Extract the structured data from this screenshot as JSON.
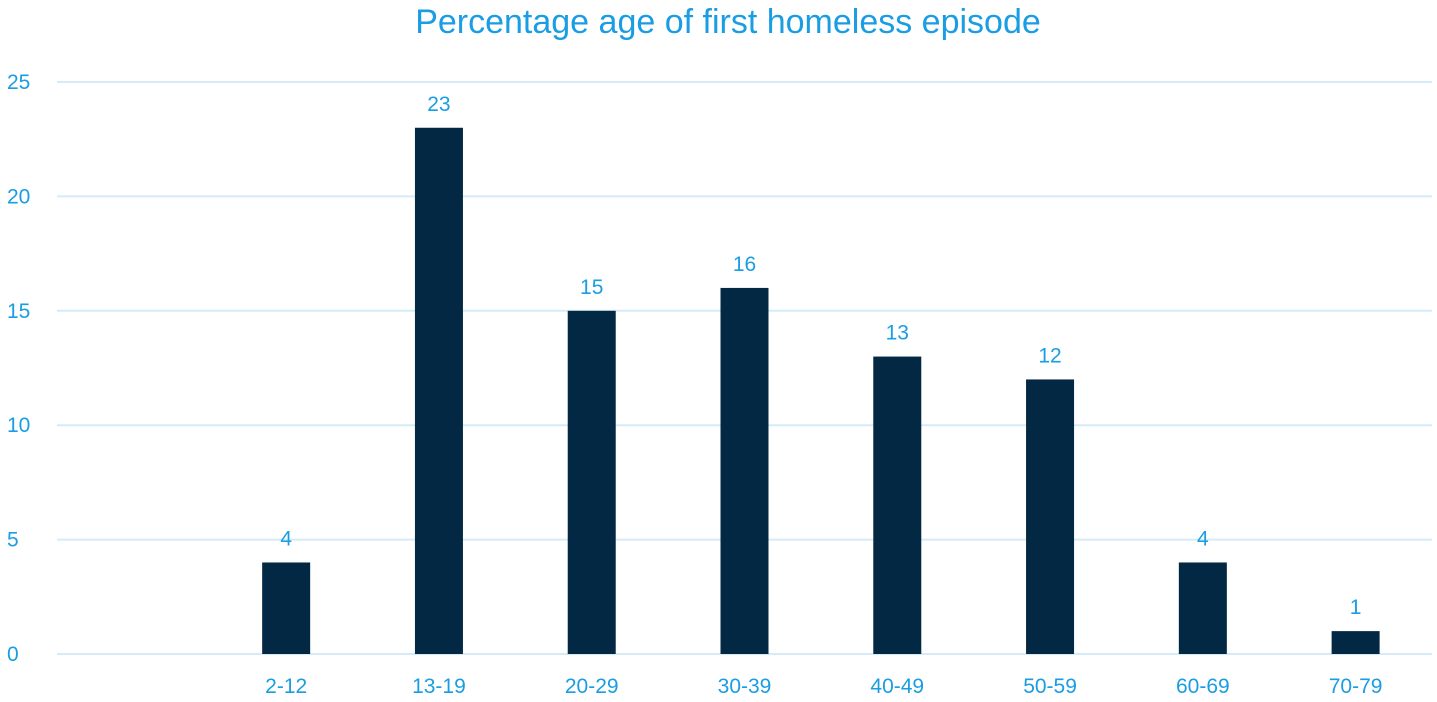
{
  "chart_data": {
    "type": "bar",
    "title": "Percentage age of first homeless episode",
    "categories": [
      "",
      "2-12",
      "13-19",
      "20-29",
      "30-39",
      "40-49",
      "50-59",
      "60-69",
      "70-79"
    ],
    "values": [
      null,
      4,
      23,
      15,
      16,
      13,
      12,
      4,
      1
    ],
    "data_labels": [
      "",
      "4",
      "23",
      "15",
      "16",
      "13",
      "12",
      "4",
      "1"
    ],
    "ylim": [
      0,
      25
    ],
    "y_ticks": [
      "0",
      "5",
      "10",
      "15",
      "20",
      "25"
    ],
    "xlabel": "",
    "ylabel": "",
    "grid": true,
    "legend": "none"
  },
  "colors": {
    "bar": "#032843",
    "text": "#1a9de3",
    "gridline": "#d6ebf8"
  }
}
